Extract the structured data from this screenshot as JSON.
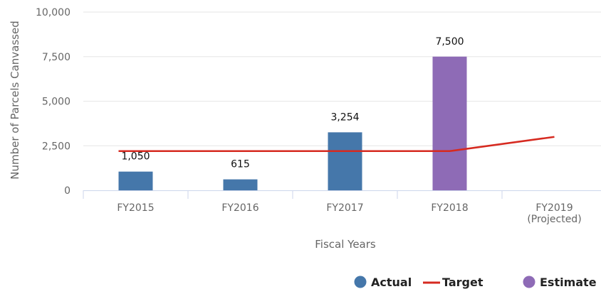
{
  "chart_data": {
    "type": "bar",
    "categories": [
      "FY2015",
      "FY2016",
      "FY2017",
      "FY2018",
      "FY2019 (Projected)"
    ],
    "category_label_lines": [
      [
        "FY2015"
      ],
      [
        "FY2016"
      ],
      [
        "FY2017"
      ],
      [
        "FY2018"
      ],
      [
        "FY2019",
        "(Projected)"
      ]
    ],
    "series": [
      {
        "name": "Actual",
        "kind": "bar",
        "color": "#4577aa",
        "values": [
          1050,
          615,
          3254,
          null,
          null
        ]
      },
      {
        "name": "Target",
        "kind": "line",
        "color": "#d62a20",
        "values": [
          2200,
          2200,
          2200,
          2200,
          3000
        ]
      },
      {
        "name": "Estimate",
        "kind": "bar",
        "color": "#8e6bb6",
        "values": [
          null,
          null,
          null,
          7500,
          null
        ]
      }
    ],
    "data_labels": [
      "1,050",
      "615",
      "3,254",
      "7,500"
    ],
    "xlabel": "Fiscal Years",
    "ylabel": "Number of Parcels Canvassed",
    "ylim": [
      0,
      10000
    ],
    "yticks": [
      0,
      2500,
      5000,
      7500,
      10000
    ],
    "ytick_labels": [
      "0",
      "2,500",
      "5,000",
      "7,500",
      "10,000"
    ],
    "grid": true,
    "legend_position": "bottom-right"
  }
}
